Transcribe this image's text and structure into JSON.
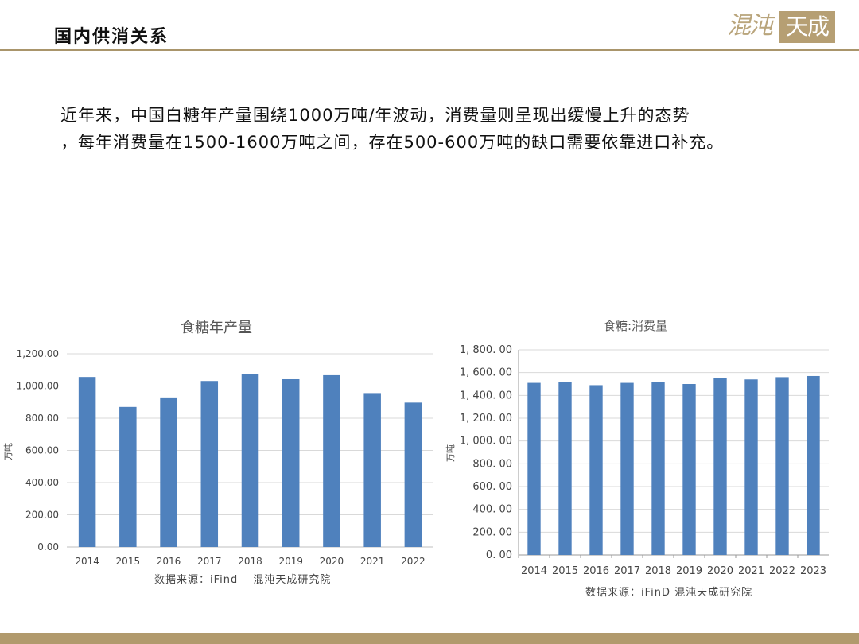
{
  "header": {
    "title": "国内供消关系",
    "logo_left": "混沌",
    "logo_right": "天成"
  },
  "intro": {
    "line1": "近年来，中国白糖年产量围绕1000万吨/年波动，消费量则呈现出缓慢上升的态势",
    "line2": "，每年消费量在1500-1600万吨之间，存在500-600万吨的缺口需要依靠进口补充。"
  },
  "colors": {
    "bar": "#4f81bd",
    "grid": "#d9d9d9",
    "accent": "#b19a6d"
  },
  "chart_data": [
    {
      "type": "bar",
      "title": "食糖年产量",
      "ylabel": "万吨",
      "categories": [
        "2014",
        "2015",
        "2016",
        "2017",
        "2018",
        "2019",
        "2020",
        "2021",
        "2022"
      ],
      "values": [
        1056,
        870,
        929,
        1031,
        1076,
        1042,
        1067,
        956,
        897
      ],
      "ylim": [
        0,
        1200
      ],
      "yticks": [
        0,
        200,
        400,
        600,
        800,
        1000,
        1200
      ],
      "ytick_labels": [
        "0.00",
        "200.00",
        "400.00",
        "600.00",
        "800.00",
        "1,000.00",
        "1,200.00"
      ],
      "grid": true,
      "source": "数据来源：iFind　 混沌天成研究院"
    },
    {
      "type": "bar",
      "title": "食糖:消费量",
      "ylabel": "万吨",
      "categories": [
        "2014",
        "2015",
        "2016",
        "2017",
        "2018",
        "2019",
        "2020",
        "2021",
        "2022",
        "2023"
      ],
      "values": [
        1510,
        1520,
        1490,
        1510,
        1520,
        1500,
        1550,
        1540,
        1560,
        1570
      ],
      "ylim": [
        0,
        1800
      ],
      "yticks": [
        0,
        200,
        400,
        600,
        800,
        1000,
        1200,
        1400,
        1600,
        1800
      ],
      "ytick_labels": [
        "0. 00",
        "200. 00",
        "400. 00",
        "600. 00",
        "800. 00",
        "1, 000. 00",
        "1, 200. 00",
        "1, 400. 00",
        "1, 600. 00",
        "1, 800. 00"
      ],
      "grid": true,
      "source": "数据来源：iFinD 混沌天成研究院"
    }
  ]
}
